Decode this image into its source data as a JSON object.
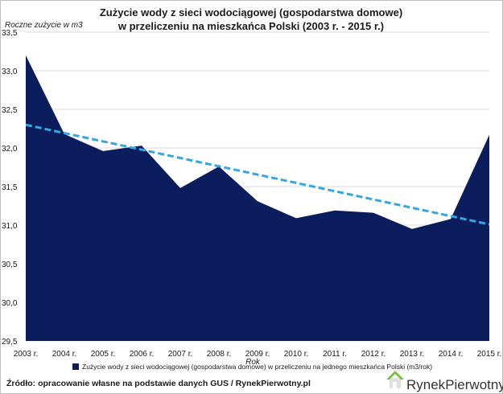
{
  "colors": {
    "area": "#0b1d5c",
    "trend": "#33a8e0",
    "grid": "#d9d9d9",
    "logo_house": "#e0e0e0",
    "logo_roof": "#7bbf3a"
  },
  "footer": {
    "source": "Źródło: opracowanie własne na podstawie danych GUS / RynekPierwotny.pl"
  },
  "logo": {
    "text_part1": "Rynek",
    "text_part2": "Pierwotny",
    "icon": "house-icon"
  },
  "chart_data": {
    "type": "area",
    "title_line1": "Zużycie wody z sieci wodociągowej (gospodarstwa domowe)",
    "title_line2": "w przeliczeniu na mieszkańca Polski (2003 r. - 2015 r.)",
    "ylabel": "Roczne zużycie w m3",
    "xlabel": "Rok",
    "categories": [
      "2003 r.",
      "2004 r.",
      "2005 r.",
      "2006 r.",
      "2007 r.",
      "2008 r.",
      "2009 r.",
      "2010 r.",
      "2011 r.",
      "2012 r.",
      "2013 r.",
      "2014 r.",
      "2015 r."
    ],
    "y_ticks": [
      "29,5",
      "30,0",
      "30,5",
      "31,0",
      "31,5",
      "32,0",
      "32,5",
      "33,0",
      "33,5"
    ],
    "ylim": [
      29.5,
      33.5
    ],
    "grid": true,
    "series": [
      {
        "name": "Zużycie wody z sieci wodociągowej (gospodarstwa domowe) w przeliczeniu na jednego mieszkańca Polski (m3/rok)",
        "values": [
          33.2,
          32.18,
          31.96,
          32.03,
          31.48,
          31.76,
          31.31,
          31.09,
          31.19,
          31.16,
          30.95,
          31.08,
          32.17
        ]
      }
    ],
    "trendline": {
      "style": "dashed",
      "start": 32.3,
      "end": 31.01
    },
    "legend_position": "bottom"
  }
}
